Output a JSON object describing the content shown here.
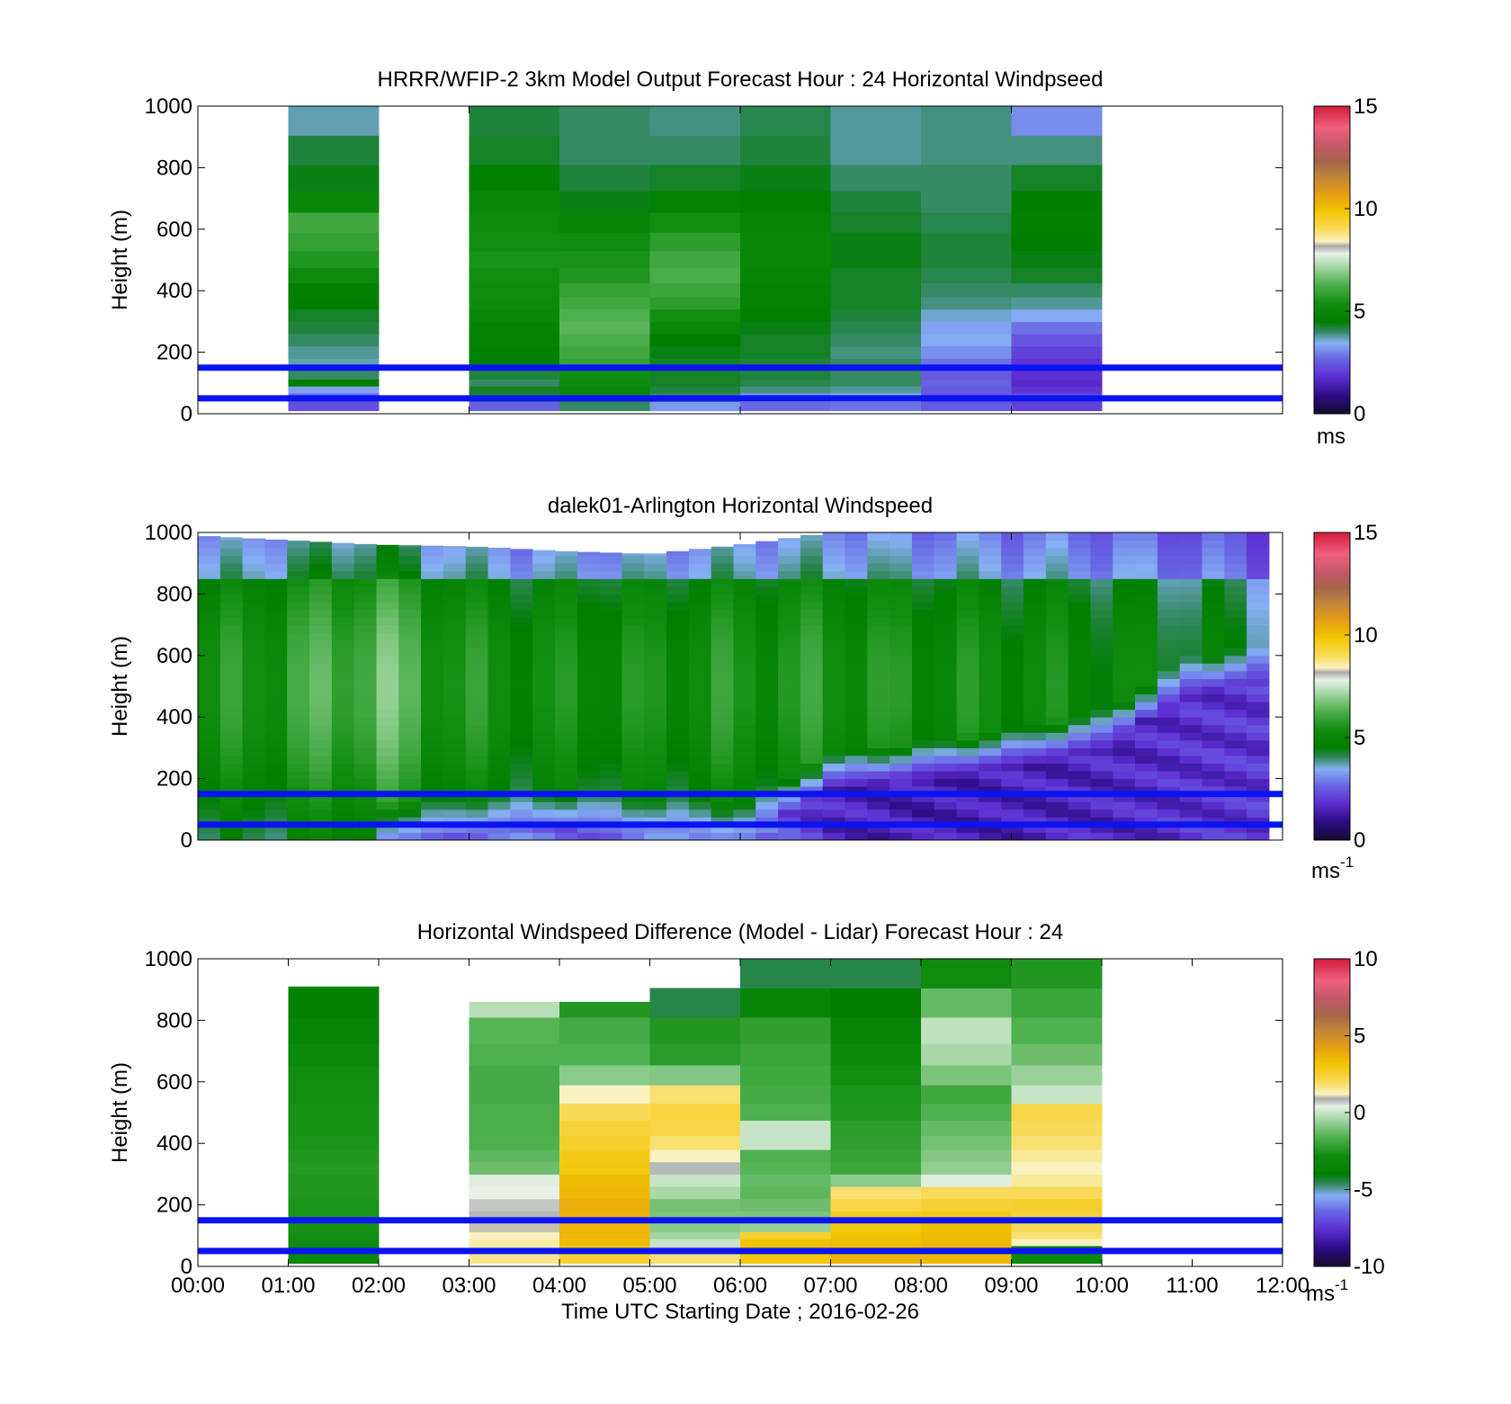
{
  "chart_data": [
    {
      "type": "heatmap",
      "panel": "model",
      "title": "HRRR/WFIP-2 3km Model Output   Forecast Hour : 24 Horizontal Windpseed",
      "ylabel": "Height (m)",
      "xlabel": "",
      "x_ticks": [
        "00:00",
        "03:00",
        "06:00",
        "09:00",
        "12:00"
      ],
      "x_labels_shown": false,
      "xlim_hours": [
        0,
        12
      ],
      "ylim": [
        0,
        1000
      ],
      "y_ticks": [
        "0",
        "200",
        "400",
        "600",
        "800",
        "1000"
      ],
      "colorbar": {
        "ticks": [
          "0",
          "5",
          "10",
          "15"
        ],
        "label": "ms",
        "superscript": "",
        "range": [
          0,
          15
        ]
      },
      "reference_lines_m": [
        50,
        150
      ],
      "columns_hours": [
        1,
        2,
        3,
        4,
        5,
        6,
        7,
        8,
        9
      ],
      "levels_m": [
        25,
        55,
        80,
        100,
        125,
        160,
        200,
        240,
        280,
        320,
        360,
        400,
        450,
        500,
        560,
        620,
        690,
        760,
        860,
        950
      ],
      "values_ms": [
        [
          2.3,
          2.8,
          3.3,
          4.5,
          4.0,
          3.7,
          3.8,
          4.0,
          4.2,
          4.3,
          4.5,
          4.6,
          5.2,
          5.6,
          5.9,
          6.1,
          5.0,
          4.4,
          4.2,
          3.7
        ],
        [
          null,
          null,
          null,
          null,
          null,
          null,
          null,
          null,
          null,
          null,
          null,
          null,
          null,
          null,
          null,
          null,
          null,
          null,
          null,
          null
        ],
        [
          2.6,
          4.2,
          4.3,
          4.0,
          4.2,
          4.5,
          4.6,
          4.7,
          4.8,
          5.0,
          5.2,
          5.3,
          5.4,
          5.5,
          5.4,
          5.2,
          5.0,
          4.6,
          4.3,
          4.2
        ],
        [
          4.0,
          4.3,
          5.0,
          5.3,
          5.4,
          5.9,
          6.1,
          6.2,
          6.4,
          6.3,
          6.1,
          5.9,
          5.6,
          5.5,
          5.3,
          4.9,
          4.4,
          4.2,
          4.0,
          4.0
        ],
        [
          3.2,
          4.0,
          4.2,
          4.3,
          4.3,
          4.3,
          4.4,
          4.5,
          5.0,
          5.4,
          5.8,
          6.0,
          6.2,
          6.1,
          5.8,
          5.4,
          4.7,
          4.3,
          4.0,
          3.9
        ],
        [
          2.7,
          3.2,
          3.9,
          4.1,
          4.2,
          4.2,
          4.3,
          4.3,
          4.4,
          4.6,
          4.7,
          4.8,
          4.9,
          5.0,
          5.0,
          4.9,
          4.6,
          4.4,
          4.2,
          4.1
        ],
        [
          2.8,
          3.5,
          3.8,
          4.0,
          4.0,
          4.0,
          3.9,
          4.0,
          4.1,
          4.2,
          4.3,
          4.3,
          4.3,
          4.4,
          4.4,
          4.3,
          4.2,
          4.0,
          3.8,
          3.8
        ],
        [
          2.5,
          2.4,
          2.5,
          2.6,
          2.5,
          2.8,
          3.1,
          3.4,
          3.3,
          3.6,
          3.9,
          4.0,
          4.1,
          4.2,
          4.2,
          4.1,
          4.0,
          4.0,
          3.9,
          3.9
        ],
        [
          2.1,
          2.3,
          1.9,
          1.7,
          1.8,
          1.9,
          2.1,
          2.4,
          2.8,
          3.4,
          3.8,
          4.0,
          4.3,
          4.4,
          4.5,
          4.6,
          4.5,
          4.3,
          3.9,
          3.1
        ]
      ]
    },
    {
      "type": "heatmap",
      "panel": "lidar",
      "title": "dalek01-Arlington  Horizontal Windspeed",
      "ylabel": "Height (m)",
      "xlabel": "",
      "x_ticks": [
        "00:00",
        "03:00",
        "06:00",
        "09:00",
        "12:00"
      ],
      "x_labels_shown": false,
      "xlim_hours": [
        0,
        12
      ],
      "ylim": [
        0,
        1000
      ],
      "y_ticks": [
        "0",
        "200",
        "400",
        "600",
        "800",
        "1000"
      ],
      "colorbar": {
        "ticks": [
          "0",
          "5",
          "10",
          "15"
        ],
        "label": "ms",
        "superscript": "-1",
        "range": [
          0,
          15
        ]
      },
      "reference_lines_m": [
        50,
        150
      ],
      "time_range_hours": [
        0,
        11.85
      ],
      "column_count": 48,
      "profile_note": "Lidar speed per column is a smooth function of height; below a boundary height the flow is slow (1–2.5 m/s), above it 4–7 m/s.",
      "anchor_hours": [
        0,
        1,
        2,
        3,
        4,
        5,
        6,
        7,
        8,
        9,
        10,
        11,
        11.85
      ],
      "upper_speed_ms": [
        5.2,
        5.8,
        6.6,
        5.4,
        5.2,
        5.3,
        5.5,
        5.6,
        5.3,
        5.2,
        5.0,
        4.6,
        4.3
      ],
      "slow_layer_top_m": [
        0,
        0,
        0,
        30,
        40,
        20,
        0,
        170,
        200,
        240,
        300,
        480,
        520
      ],
      "slow_layer_speed_ms": [
        3,
        3,
        3,
        2.8,
        2.6,
        2.8,
        3,
        1.6,
        1.4,
        1.5,
        1.6,
        1.8,
        1.9
      ],
      "data_top_m": [
        990,
        975,
        960,
        955,
        940,
        930,
        960,
        1000,
        1000,
        1000,
        1000,
        1000,
        1000
      ]
    },
    {
      "type": "heatmap",
      "panel": "difference",
      "title": "Horizontal Windspeed Difference (Model - Lidar) Forecast Hour : 24",
      "ylabel": "Height (m)",
      "xlabel": "Time UTC  Starting Date ; 2016-02-26",
      "x_ticks": [
        "00:00",
        "01:00",
        "02:00",
        "03:00",
        "04:00",
        "05:00",
        "06:00",
        "07:00",
        "08:00",
        "09:00",
        "10:00",
        "11:00",
        "12:00"
      ],
      "x_labels_shown": true,
      "xlim_hours": [
        0,
        12
      ],
      "ylim": [
        0,
        1000
      ],
      "y_ticks": [
        "0",
        "200",
        "400",
        "600",
        "800",
        "1000"
      ],
      "colorbar": {
        "ticks": [
          "-10",
          "-5",
          "0",
          "5",
          "10"
        ],
        "label": "ms",
        "superscript": "-1",
        "range": [
          -10,
          10
        ]
      },
      "reference_lines_m": [
        50,
        150
      ],
      "columns_hours": [
        1,
        2,
        3,
        4,
        5,
        6,
        7,
        8,
        9
      ],
      "column_tops_m": [
        910,
        0,
        860,
        860,
        910,
        1000,
        1000,
        1000,
        1000
      ],
      "levels_m": [
        25,
        55,
        80,
        100,
        125,
        160,
        200,
        240,
        280,
        320,
        360,
        400,
        450,
        500,
        560,
        620,
        690,
        760,
        860,
        950
      ],
      "values_ms": [
        [
          -3.2,
          -3.2,
          -3.0,
          -2.8,
          -2.7,
          -2.6,
          -2.6,
          -2.5,
          -2.5,
          -2.4,
          -2.5,
          -2.6,
          -2.7,
          -2.7,
          -2.8,
          -2.9,
          -3.2,
          -3.5,
          -3.8,
          -3.0
        ],
        [
          null,
          null,
          null,
          null,
          null,
          null,
          null,
          null,
          null,
          null,
          null,
          null,
          null,
          null,
          null,
          null,
          null,
          null,
          null,
          null
        ],
        [
          1.6,
          1.4,
          1.4,
          1.2,
          1.0,
          0.8,
          0.7,
          0.4,
          0.3,
          -1.2,
          -1.4,
          -1.6,
          -1.7,
          -1.7,
          -1.8,
          -1.8,
          -1.6,
          -1.5,
          -0.2,
          null
        ],
        [
          2.5,
          3.0,
          3.4,
          3.6,
          3.6,
          3.7,
          3.8,
          3.5,
          3.4,
          3.0,
          2.9,
          2.6,
          2.4,
          2.0,
          1.2,
          -0.8,
          -1.6,
          -1.8,
          -2.5,
          null
        ],
        [
          1.8,
          0.6,
          0.0,
          -0.5,
          -0.8,
          -1.0,
          -1.1,
          -0.4,
          0.0,
          0.8,
          1.2,
          1.8,
          2.2,
          2.3,
          1.8,
          -0.9,
          -2.3,
          -2.5,
          -4.5,
          null
        ],
        [
          3.0,
          3.5,
          3.2,
          2.5,
          -0.6,
          -1.0,
          -1.2,
          -1.4,
          -1.3,
          -1.5,
          -1.6,
          0.0,
          0.0,
          -1.6,
          -1.8,
          -1.9,
          -2.0,
          -2.2,
          -3.5,
          -4.5
        ],
        [
          3.6,
          3.5,
          3.4,
          3.2,
          3.0,
          2.8,
          2.2,
          1.8,
          -0.8,
          -2.0,
          -2.1,
          -2.2,
          -2.3,
          -2.5,
          -2.6,
          -2.8,
          -3.2,
          -3.5,
          -4.0,
          -4.5
        ],
        [
          3.5,
          3.6,
          3.5,
          3.4,
          3.3,
          2.9,
          2.5,
          2.0,
          0.3,
          -0.7,
          -0.9,
          -1.1,
          -1.3,
          -1.6,
          -1.9,
          -1.0,
          -0.4,
          -0.1,
          -1.3,
          -3.0
        ],
        [
          -3.2,
          -3.0,
          1.2,
          1.8,
          2.0,
          2.4,
          2.6,
          2.0,
          1.5,
          1.2,
          1.5,
          1.8,
          2.0,
          2.2,
          0.0,
          -0.6,
          -1.2,
          -1.6,
          -2.0,
          -2.5
        ]
      ]
    }
  ]
}
